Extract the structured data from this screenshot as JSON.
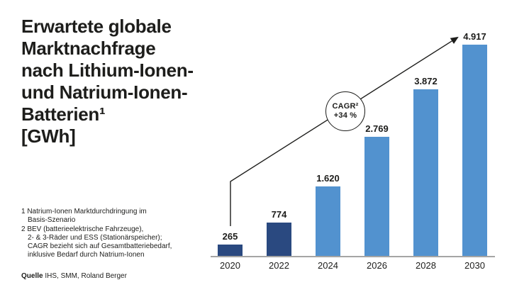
{
  "title": "Erwartete globale\nMarktnachfrage\nnach Lithium-Ionen-\nund Natrium-Ionen-\nBatterien¹\n[GWh]",
  "footnotes": [
    "1 Natrium-Ionen Marktdurchdringung im\nBasis-Szenario",
    "2 BEV (batterieelektrische Fahrzeuge),\n2- & 3-Räder und ESS (Stationärspeicher);\nCAGR bezieht sich auf Gesamtbatteriebedarf,\ninklusive Bedarf durch Natrium-Ionen"
  ],
  "source": {
    "label": "Quelle",
    "text": " IHS, SMM, Roland Berger"
  },
  "cagr_badge": {
    "line1": "CAGR²",
    "line2": "+34 %"
  },
  "chart_data": {
    "type": "bar",
    "title": "Erwartete globale Marktnachfrage nach Lithium-Ionen- und Natrium-Ionen-Batterien [GWh]",
    "unit": "GWh",
    "categories": [
      "2020",
      "2022",
      "2024",
      "2026",
      "2028",
      "2030"
    ],
    "values": [
      265,
      774,
      1620,
      2769,
      3872,
      4917
    ],
    "value_labels": [
      "265",
      "774",
      "1.620",
      "2.769",
      "3.872",
      "4.917"
    ],
    "bar_colors": [
      "#2a4980",
      "#2a4980",
      "#5292cf",
      "#5292cf",
      "#5292cf",
      "#5292cf"
    ],
    "ylim": [
      0,
      4917
    ],
    "grid": false,
    "legend": false,
    "annotation": "CAGR² +34 % (2020–2030)"
  },
  "colors": {
    "dark_blue": "#2a4980",
    "light_blue": "#5292cf",
    "axis_gray": "#a5a5a4",
    "text": "#1d1d1b"
  }
}
